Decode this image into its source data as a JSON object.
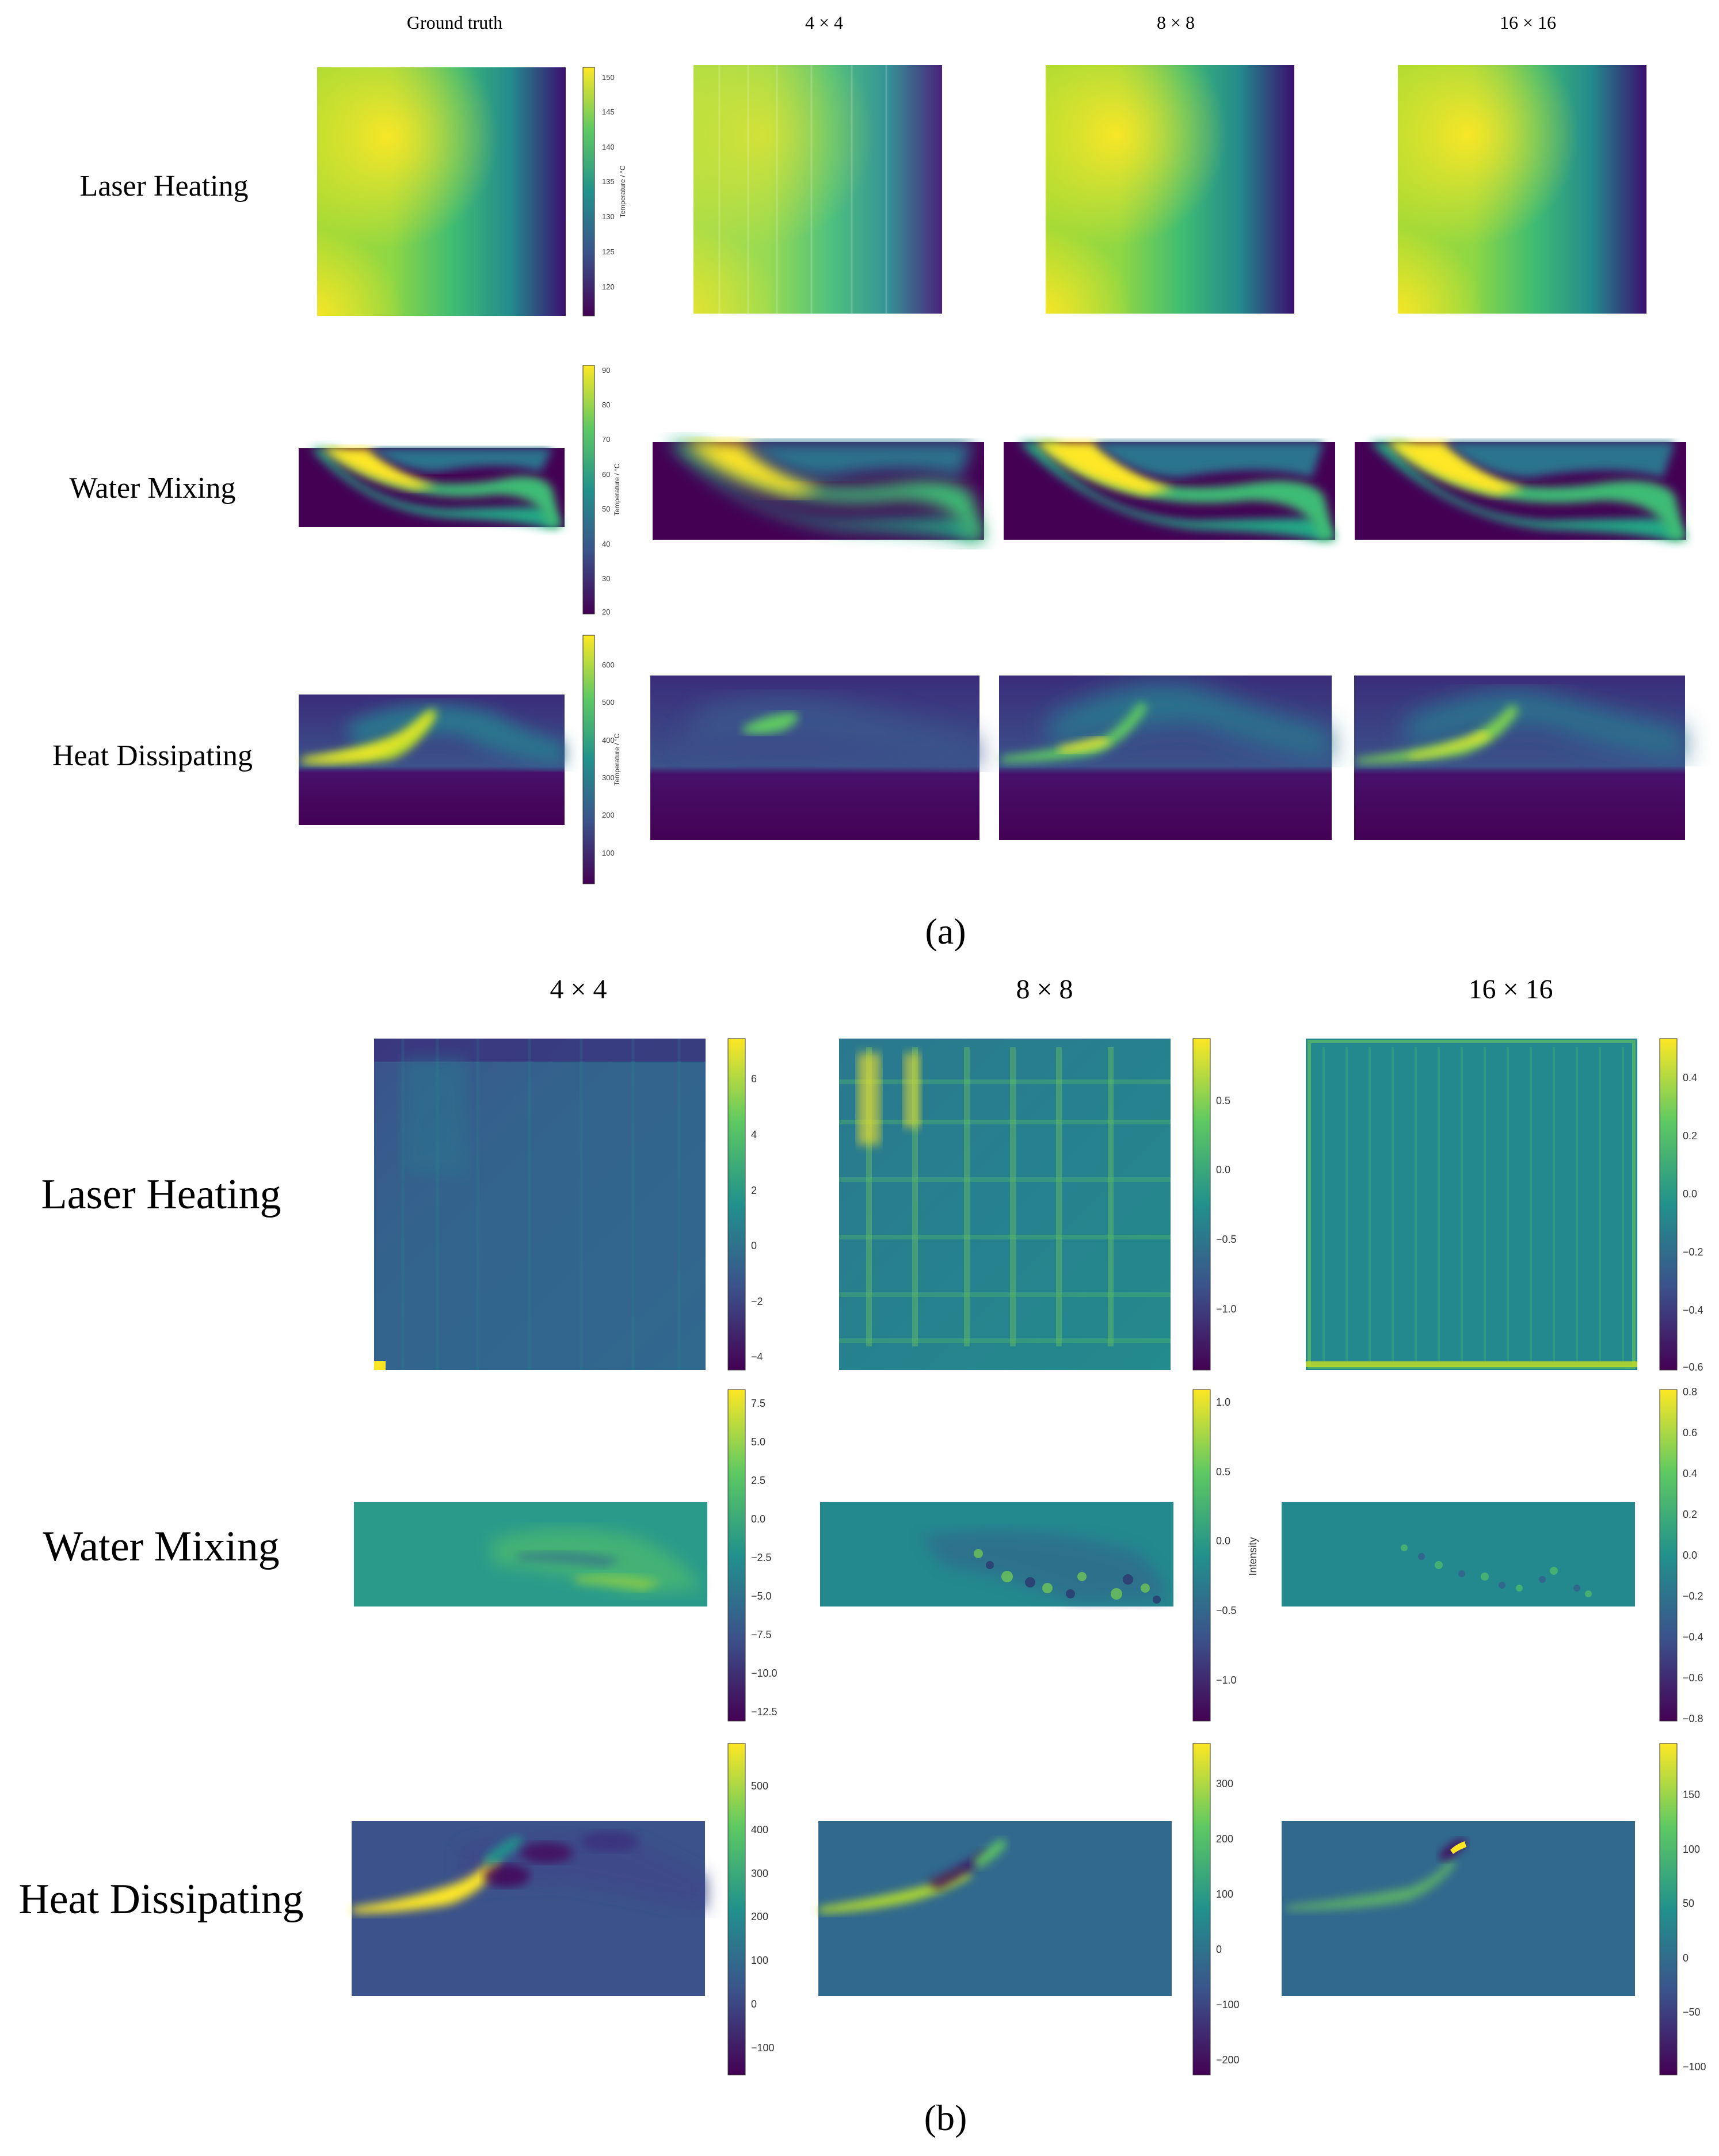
{
  "panel_a": {
    "label": "(a)",
    "columns": [
      "Ground truth",
      "4 × 4",
      "8 × 8",
      "16 × 16"
    ],
    "rows": [
      "Laser Heating",
      "Water Mixing",
      "Heat Dissipating"
    ],
    "colorbars": [
      {
        "label": "Temperature / °C",
        "ticks": [
          "150",
          "145",
          "140",
          "135",
          "130",
          "125",
          "120"
        ]
      },
      {
        "label": "Temperature / °C",
        "ticks": [
          "90",
          "80",
          "70",
          "60",
          "50",
          "40",
          "30",
          "20"
        ]
      },
      {
        "label": "Temperature / °C",
        "ticks": [
          "600",
          "500",
          "400",
          "300",
          "200",
          "100"
        ]
      }
    ]
  },
  "panel_b": {
    "label": "(b)",
    "columns": [
      "4 × 4",
      "8 × 8",
      "16 × 16"
    ],
    "rows": [
      "Laser Heating",
      "Water Mixing",
      "Heat Dissipating"
    ],
    "colorbar_label": "Intensity",
    "colorbars": [
      [
        "6",
        "4",
        "2",
        "0",
        "−2",
        "−4"
      ],
      [
        "0.5",
        "0.0",
        "−0.5",
        "−1.0"
      ],
      [
        "0.4",
        "0.2",
        "0.0",
        "−0.2",
        "−0.4",
        "−0.6"
      ],
      [
        "7.5",
        "5.0",
        "2.5",
        "0.0",
        "−2.5",
        "−5.0",
        "−7.5",
        "−10.0",
        "−12.5"
      ],
      [
        "1.0",
        "0.5",
        "0.0",
        "−0.5",
        "−1.0"
      ],
      [
        "0.8",
        "0.6",
        "0.4",
        "0.2",
        "0.0",
        "−0.2",
        "−0.4",
        "−0.6",
        "−0.8"
      ],
      [
        "500",
        "400",
        "300",
        "200",
        "100",
        "0",
        "−100"
      ],
      [
        "300",
        "200",
        "100",
        "0",
        "−100",
        "−200"
      ],
      [
        "150",
        "100",
        "50",
        "0",
        "−50",
        "−100"
      ]
    ]
  },
  "colors": {
    "viridis_dark": "#440154",
    "viridis_blue": "#3b528b",
    "viridis_teal": "#21918c",
    "viridis_green": "#5ec962",
    "viridis_yellow": "#fde725"
  }
}
